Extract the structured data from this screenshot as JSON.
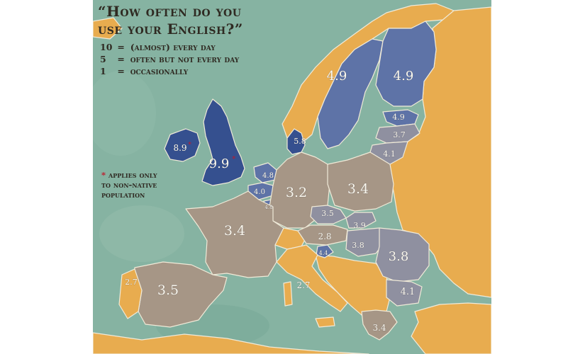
{
  "title": {
    "line1": "“How often do you",
    "line2": "use your English?”"
  },
  "legend": [
    {
      "num": "10",
      "eq": "=",
      "text": "(almost) every day"
    },
    {
      "num": "5",
      "eq": "=",
      "text": "often but not every day"
    },
    {
      "num": "1",
      "eq": "=",
      "text": "occasionally"
    }
  ],
  "note": {
    "star": "*",
    "line1": "applies only",
    "line2": "to non-native",
    "line3": "population"
  },
  "colors": {
    "sea": "#86b3a2",
    "non_eu_land": "#e8ac4f",
    "high": "#35508f",
    "mid_high": "#5e73a7",
    "mid": "#8f90a0",
    "low": "#a69686",
    "text": "#2f2a22",
    "star": "#c0182a"
  },
  "countries": [
    {
      "name": "United Kingdom",
      "value": "9.9",
      "starred": true
    },
    {
      "name": "Ireland",
      "value": "8.9",
      "starred": true
    },
    {
      "name": "Sweden",
      "value": "4.9",
      "starred": false
    },
    {
      "name": "Finland",
      "value": "4.9",
      "starred": false
    },
    {
      "name": "Estonia",
      "value": "4.9",
      "starred": false
    },
    {
      "name": "Latvia",
      "value": "3.7",
      "starred": false
    },
    {
      "name": "Lithuania",
      "value": "4.1",
      "starred": false
    },
    {
      "name": "Denmark",
      "value": "5.8",
      "starred": false
    },
    {
      "name": "Netherlands",
      "value": "4.8",
      "starred": false
    },
    {
      "name": "Belgium",
      "value": "4.0",
      "starred": false
    },
    {
      "name": "Luxembourg",
      "value": "4.8",
      "starred": false
    },
    {
      "name": "Germany",
      "value": "3.2",
      "starred": false
    },
    {
      "name": "Poland",
      "value": "3.4",
      "starred": false
    },
    {
      "name": "Czech Republic",
      "value": "3.5",
      "starred": false
    },
    {
      "name": "Slovakia",
      "value": "3.9",
      "starred": false
    },
    {
      "name": "Austria",
      "value": "2.8",
      "starred": false
    },
    {
      "name": "Hungary",
      "value": "3.8",
      "starred": false
    },
    {
      "name": "Slovenia",
      "value": "4.4",
      "starred": false
    },
    {
      "name": "Romania",
      "value": "3.8",
      "starred": false
    },
    {
      "name": "Bulgaria",
      "value": "4.1",
      "starred": false
    },
    {
      "name": "France",
      "value": "3.4",
      "starred": false
    },
    {
      "name": "Spain",
      "value": "3.5",
      "starred": false
    },
    {
      "name": "Portugal",
      "value": "2.7",
      "starred": false
    },
    {
      "name": "Italy",
      "value": "2.7",
      "starred": false
    },
    {
      "name": "Greece",
      "value": "3.4",
      "starred": false
    }
  ]
}
